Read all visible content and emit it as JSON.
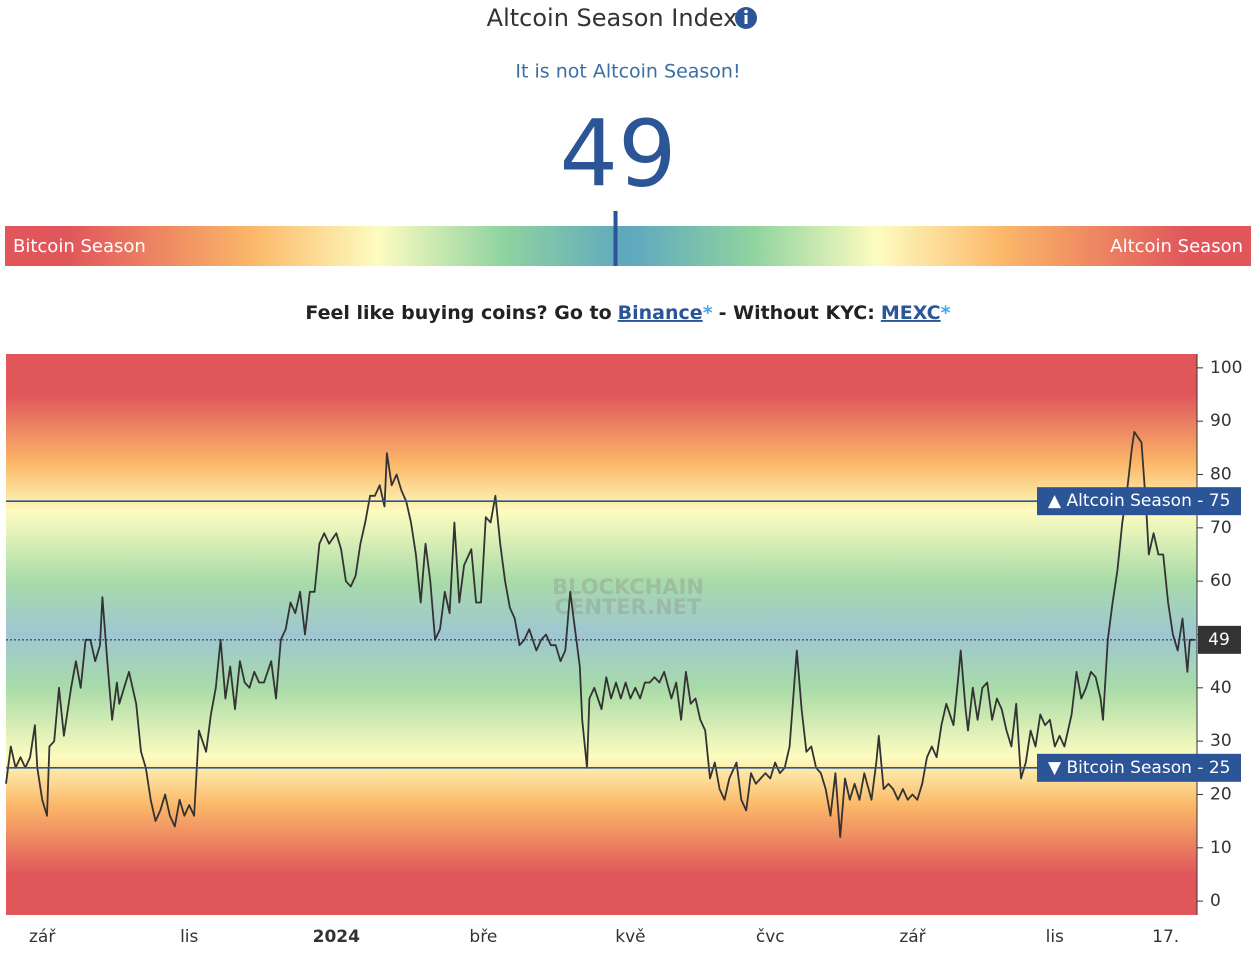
{
  "header": {
    "title": "Altcoin Season Index",
    "status": "It is not Altcoin Season!",
    "value": 49
  },
  "gauge": {
    "left_label": "Bitcoin Season",
    "right_label": "Altcoin Season"
  },
  "promo": {
    "lead": "Feel like buying coins? Go to",
    "link1": "Binance",
    "star1": "*",
    "middle": "- Without KYC:",
    "link2": "MEXC",
    "star2": "*"
  },
  "chart_data": {
    "type": "line",
    "color": "#333333",
    "x": [
      0,
      2,
      4,
      6,
      8,
      10,
      12,
      13,
      15,
      17,
      18,
      20,
      22,
      24,
      27,
      29,
      31,
      33,
      35,
      37,
      39,
      40,
      42,
      44,
      46,
      47,
      49,
      51,
      54,
      56,
      58,
      60,
      62,
      64,
      66,
      68,
      70,
      72,
      74,
      76,
      78,
      80,
      83,
      85,
      87,
      89,
      91,
      93,
      95,
      97,
      99,
      101,
      103,
      105,
      107,
      110,
      112,
      114,
      116,
      118,
      120,
      122,
      124,
      126,
      128,
      130,
      132,
      134,
      137,
      139,
      141,
      143,
      145,
      147,
      149,
      151,
      153,
      155,
      157,
      158,
      160,
      162,
      164,
      166,
      168,
      170,
      172,
      174,
      176,
      178,
      180,
      182,
      184,
      186,
      188,
      190,
      193,
      195,
      197,
      199,
      201,
      203,
      205,
      207,
      209,
      211,
      213,
      215,
      217,
      220,
      222,
      224,
      226,
      228,
      230,
      232,
      234,
      236,
      238,
      239,
      241,
      242,
      244,
      247,
      249,
      251,
      253,
      255,
      257,
      259,
      261,
      263,
      265,
      267,
      269,
      271,
      273,
      276,
      278,
      280,
      282,
      284,
      286,
      288,
      290,
      292,
      294,
      296,
      298,
      300,
      303,
      305,
      307,
      309,
      311,
      313,
      315,
      317,
      319,
      321,
      323,
      325,
      327,
      328,
      330,
      332,
      334,
      336,
      338,
      340,
      342,
      344,
      346,
      348,
      350,
      352,
      354,
      356,
      359,
      361,
      362,
      364,
      366,
      368,
      370,
      372,
      374,
      376,
      378,
      380,
      382,
      384,
      386,
      388,
      390,
      393,
      395,
      396,
      398,
      399,
      401,
      403,
      405,
      407,
      409,
      411,
      413,
      415,
      417,
      419,
      421,
      423,
      425,
      427,
      429,
      431,
      433,
      435,
      437,
      439,
      442,
      444,
      446,
      448,
      450,
      452,
      454,
      455,
      457,
      459,
      461,
      463,
      465,
      467,
      468,
      471,
      473,
      474,
      476,
      478,
      480,
      482,
      484,
      486,
      488,
      490,
      491,
      493
    ],
    "values": [
      22,
      29,
      25,
      27,
      25,
      27,
      33,
      25,
      19,
      16,
      29,
      30,
      40,
      31,
      40,
      45,
      40,
      49,
      49,
      45,
      48,
      57,
      45,
      34,
      41,
      37,
      40,
      43,
      37,
      28,
      25,
      19,
      15,
      17,
      20,
      16,
      14,
      19,
      16,
      18,
      16,
      32,
      28,
      35,
      40,
      49,
      38,
      44,
      36,
      45,
      41,
      40,
      43,
      41,
      41,
      45,
      38,
      49,
      51,
      56,
      54,
      58,
      50,
      58,
      58,
      67,
      69,
      67,
      69,
      66,
      60,
      59,
      61,
      67,
      71,
      76,
      76,
      78,
      74,
      84,
      78,
      80,
      77,
      75,
      71,
      65,
      56,
      67,
      60,
      49,
      51,
      58,
      54,
      71,
      56,
      63,
      66,
      56,
      56,
      72,
      71,
      76,
      67,
      60,
      55,
      53,
      48,
      49,
      51,
      47,
      49,
      50,
      48,
      48,
      45,
      47,
      58,
      51,
      44,
      34,
      25,
      38,
      40,
      36,
      42,
      38,
      41,
      38,
      41,
      38,
      40,
      38,
      41,
      41,
      42,
      41,
      43,
      38,
      41,
      34,
      43,
      37,
      38,
      34,
      32,
      23,
      26,
      21,
      19,
      23,
      26,
      19,
      17,
      24,
      22,
      23,
      24,
      23,
      26,
      24,
      25,
      29,
      41,
      47,
      36,
      28,
      29,
      25,
      24,
      21,
      16,
      24,
      12,
      23,
      19,
      22,
      19,
      24,
      19,
      26,
      31,
      21,
      22,
      21,
      19,
      21,
      19,
      20,
      19,
      22,
      27,
      29,
      27,
      33,
      37,
      33,
      42,
      47,
      36,
      32,
      40,
      34,
      40,
      41,
      34,
      38,
      36,
      32,
      29,
      37,
      23,
      26,
      32,
      29,
      35,
      33,
      34,
      29,
      31,
      29,
      35,
      43,
      38,
      40,
      43,
      42,
      38,
      34,
      49,
      56,
      62,
      71,
      77,
      85,
      88,
      86,
      73,
      65,
      69,
      65,
      65,
      56,
      50,
      47,
      53,
      43,
      49,
      49
    ],
    "xlim": [
      0,
      494
    ],
    "xticks": [
      {
        "value": 15,
        "label": "zář"
      },
      {
        "value": 76,
        "label": "lis"
      },
      {
        "value": 137,
        "label": "2024"
      },
      {
        "value": 198,
        "label": "bře"
      },
      {
        "value": 259,
        "label": "kvě"
      },
      {
        "value": 317,
        "label": "čvc"
      },
      {
        "value": 376,
        "label": "zář"
      },
      {
        "value": 435,
        "label": "lis"
      },
      {
        "value": 481,
        "label": "17."
      }
    ],
    "major_xtick": 2,
    "ylim": [
      -2.6,
      102.6
    ],
    "yticks": [
      0,
      10,
      20,
      30,
      40,
      50,
      60,
      70,
      80,
      90,
      100
    ],
    "reference_lines": [
      {
        "value": 75,
        "label": "▲ Altcoin Season - 75",
        "color": "#2c5597"
      },
      {
        "value": 25,
        "label": "▼ Bitcoin Season - 25",
        "color": "#2c5597"
      }
    ],
    "current": 49,
    "watermark": [
      "BLOCKCHAIN",
      "CENTER.NET"
    ]
  }
}
